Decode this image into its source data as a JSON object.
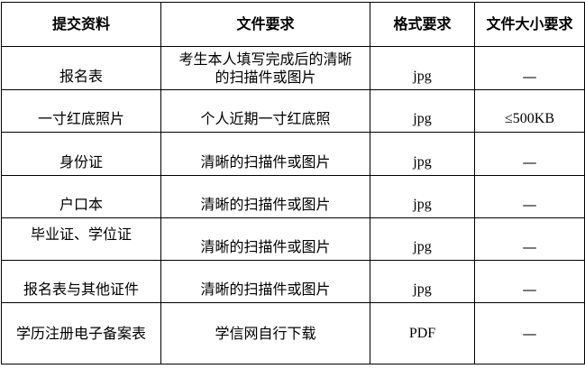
{
  "headers": [
    "提交资料",
    "文件要求",
    "格式要求",
    "文件大小要求"
  ],
  "rows": [
    {
      "material": "报名表",
      "requirement": "考生本人填写完成后的清晰的扫描件或图片",
      "format": "jpg",
      "size": "—"
    },
    {
      "material": "一寸红底照片",
      "requirement": "个人近期一寸红底照",
      "format": "jpg",
      "size": "≤500KB"
    },
    {
      "material": "身份证",
      "requirement": "清晰的扫描件或图片",
      "format": "jpg",
      "size": "—"
    },
    {
      "material": "户口本",
      "requirement": "清晰的扫描件或图片",
      "format": "jpg",
      "size": "—"
    },
    {
      "material": "毕业证、学位证",
      "requirement": "清晰的扫描件或图片",
      "format": "jpg",
      "size": "—"
    },
    {
      "material": "报名表与其他证件",
      "requirement": "清晰的扫描件或图片",
      "format": "jpg",
      "size": "—"
    },
    {
      "material": "学历注册电子备案表",
      "requirement": "学信网自行下载",
      "format": "PDF",
      "size": "—"
    }
  ]
}
